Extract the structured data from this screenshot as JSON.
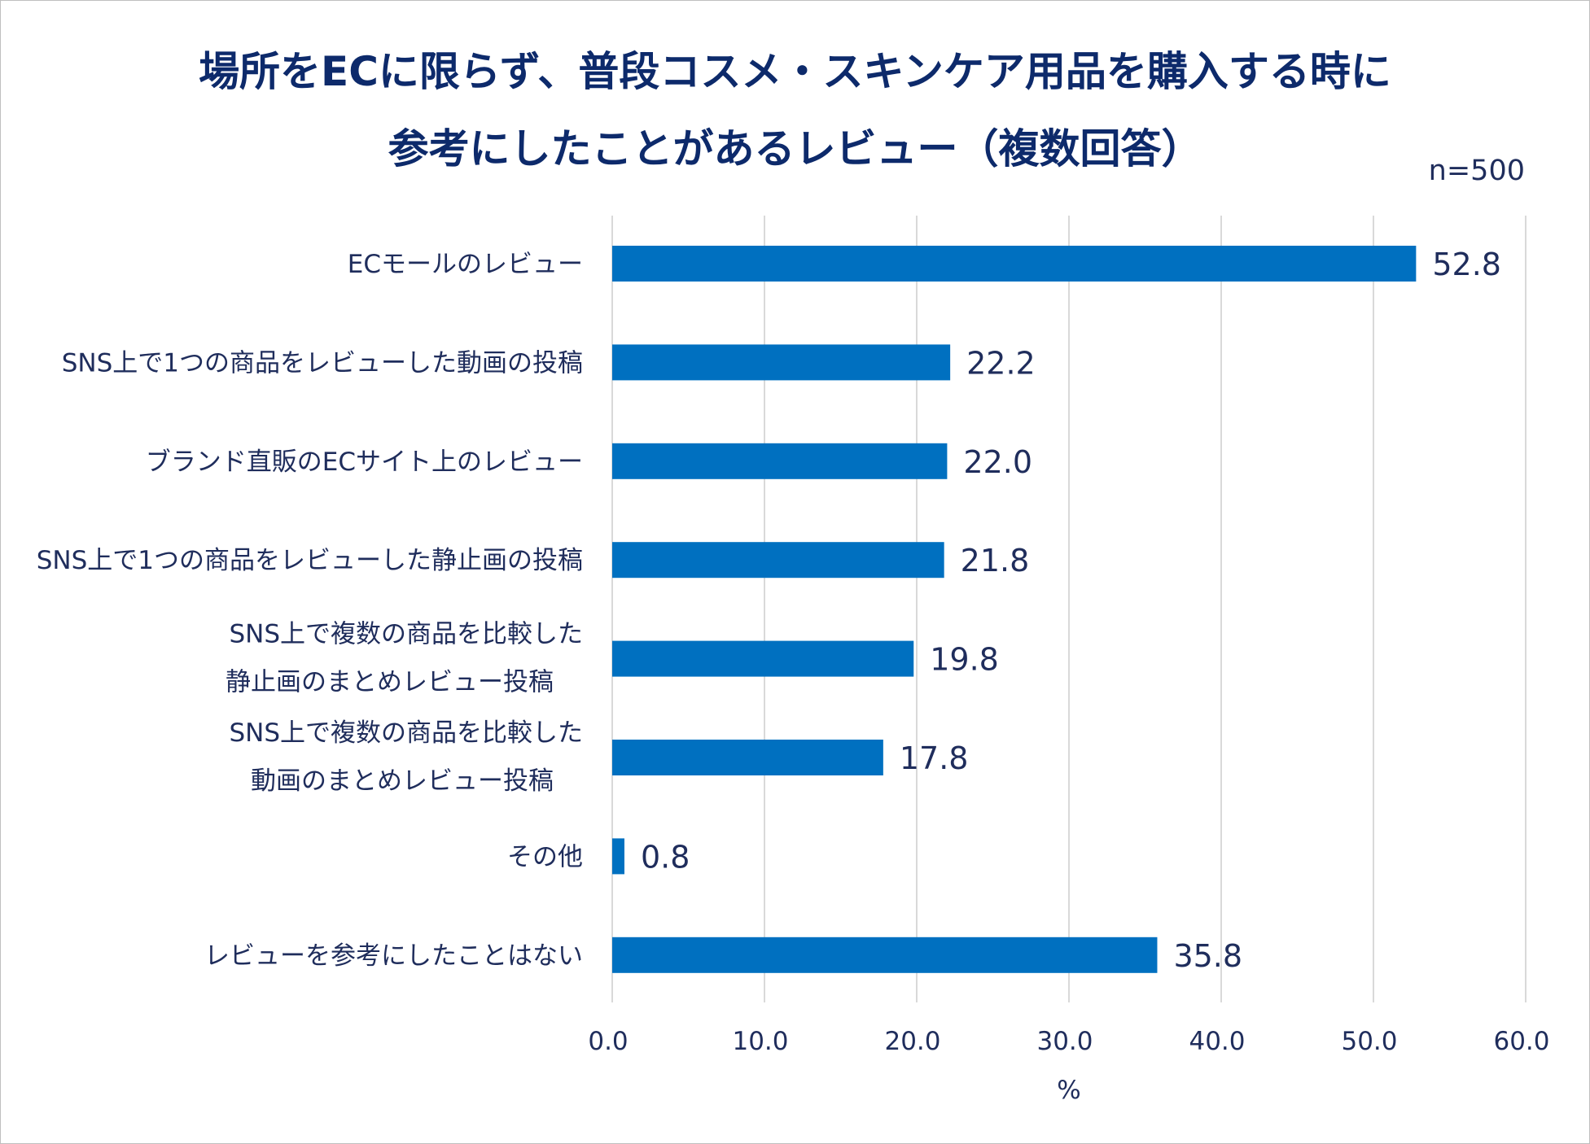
{
  "chart_data": {
    "type": "bar",
    "orientation": "horizontal",
    "title_lines": [
      "場所をECに限らず、普段コスメ・スキンケア用品を購入する時に",
      "参考にしたことがあるレビュー（複数回答）"
    ],
    "sample_size": "n=500",
    "categories": [
      [
        "ECモールのレビュー"
      ],
      [
        "SNS上で1つの商品をレビューした動画の投稿"
      ],
      [
        "ブランド直販のECサイト上のレビュー"
      ],
      [
        "SNS上で1つの商品をレビューした静止画の投稿"
      ],
      [
        "SNS上で複数の商品を比較した",
        "静止画のまとめレビュー投稿"
      ],
      [
        "SNS上で複数の商品を比較した",
        "動画のまとめレビュー投稿"
      ],
      [
        "その他"
      ],
      [
        "レビューを参考にしたことはない"
      ]
    ],
    "values": [
      52.8,
      22.2,
      22.0,
      21.8,
      19.8,
      17.8,
      0.8,
      35.8
    ],
    "value_labels": [
      "52.8",
      "22.2",
      "22.0",
      "21.8",
      "19.8",
      "17.8",
      "0.8",
      "35.8"
    ],
    "xlim": [
      0,
      60
    ],
    "xticks": [
      "0.0",
      "10.0",
      "20.0",
      "30.0",
      "40.0",
      "50.0",
      "60.0"
    ],
    "xlabel": "%",
    "grid": true,
    "bar_color": "#0070c0",
    "grid_color": "#d9d9d9"
  }
}
